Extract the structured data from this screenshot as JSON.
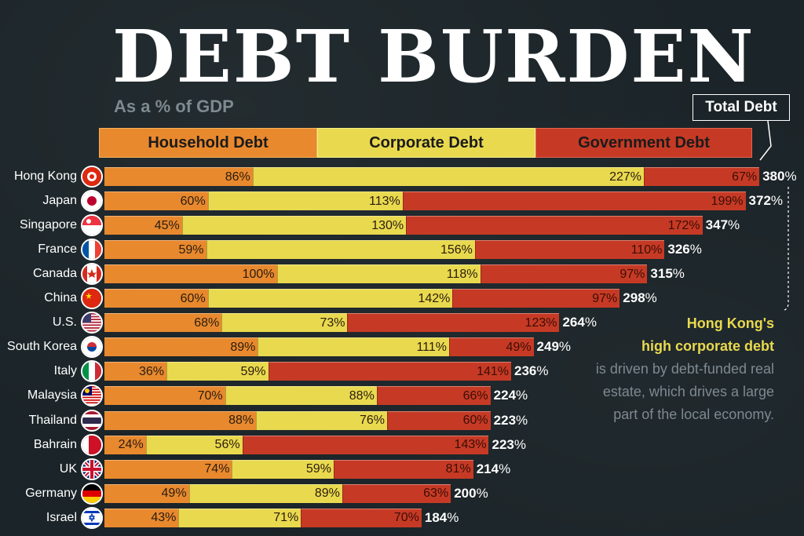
{
  "title": "DEBT BURDEN",
  "subtitle": "As a % of GDP",
  "legend": {
    "household": "Household Debt",
    "corporate": "Corporate Debt",
    "government": "Government Debt",
    "total": "Total Debt"
  },
  "callout": {
    "line1": "Hong Kong's",
    "line2": "high corporate debt",
    "line3": "is driven by debt-funded real",
    "line4": "estate, which drives a large",
    "line5": "part of the local economy."
  },
  "colors": {
    "household": "#e8892e",
    "corporate": "#e9d94e",
    "government": "#c63a25",
    "background": "#1b2428"
  },
  "chart_data": {
    "type": "bar",
    "orientation": "horizontal",
    "stacked": true,
    "unit": "% of GDP",
    "title": "DEBT BURDEN",
    "subtitle": "As a % of GDP",
    "categories": [
      "Hong Kong",
      "Japan",
      "Singapore",
      "France",
      "Canada",
      "China",
      "U.S.",
      "South Korea",
      "Italy",
      "Malaysia",
      "Thailand",
      "Bahrain",
      "UK",
      "Germany",
      "Israel"
    ],
    "series": [
      {
        "name": "Household Debt",
        "values": [
          86,
          60,
          45,
          59,
          100,
          60,
          68,
          89,
          36,
          70,
          88,
          24,
          74,
          49,
          43
        ]
      },
      {
        "name": "Corporate Debt",
        "values": [
          227,
          113,
          130,
          156,
          118,
          142,
          73,
          111,
          59,
          88,
          76,
          56,
          59,
          89,
          71
        ]
      },
      {
        "name": "Government Debt",
        "values": [
          67,
          199,
          172,
          110,
          97,
          97,
          123,
          49,
          141,
          66,
          60,
          143,
          81,
          63,
          70
        ]
      }
    ],
    "totals": [
      380,
      372,
      347,
      326,
      315,
      298,
      264,
      249,
      236,
      224,
      223,
      223,
      214,
      200,
      184
    ],
    "flags": [
      "hk-flag-icon",
      "japan-flag-icon",
      "singapore-flag-icon",
      "france-flag-icon",
      "canada-flag-icon",
      "china-flag-icon",
      "us-flag-icon",
      "south-korea-flag-icon",
      "italy-flag-icon",
      "malaysia-flag-icon",
      "thailand-flag-icon",
      "bahrain-flag-icon",
      "uk-flag-icon",
      "germany-flag-icon",
      "israel-flag-icon"
    ],
    "legend_position": "top"
  }
}
